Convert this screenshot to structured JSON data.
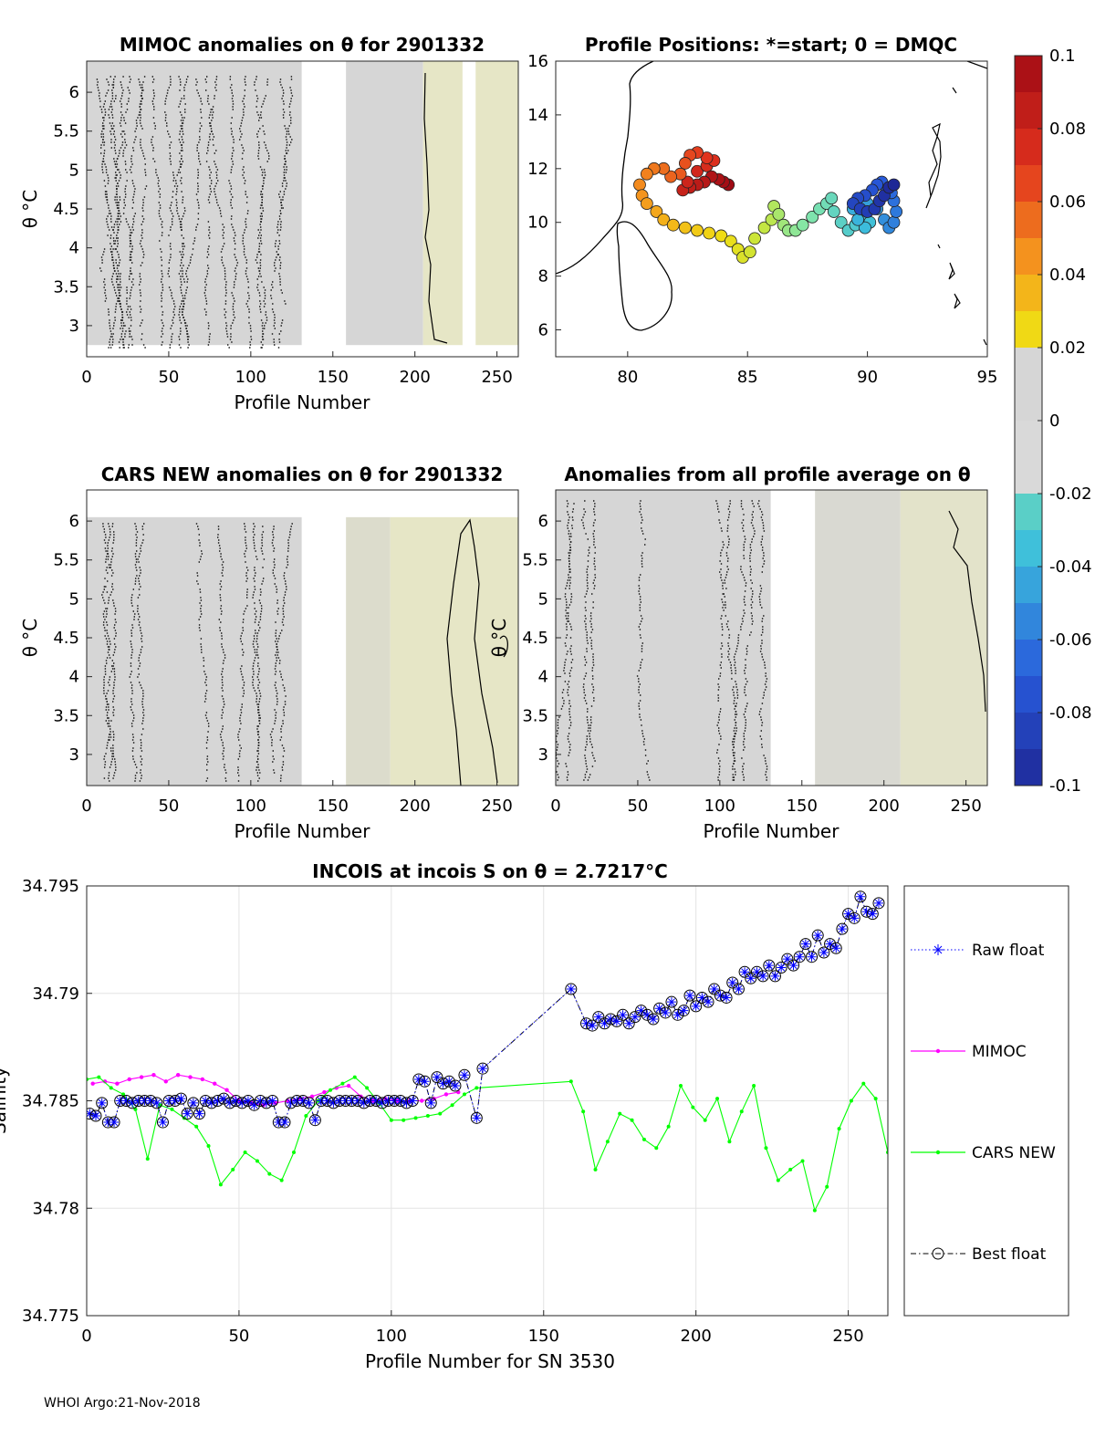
{
  "footer": "WHOI Argo:21-Nov-2018",
  "colorbar": {
    "tick_labels": [
      "0.1",
      "0.08",
      "0.06",
      "0.04",
      "0.02",
      "0",
      "-0.02",
      "-0.04",
      "-0.06",
      "-0.08",
      "-0.1"
    ],
    "range": [
      -0.1,
      0.1
    ]
  },
  "chart_data": [
    {
      "id": "mimoc",
      "type": "heatmap",
      "title": "MIMOC anomalies on θ  for 2901332",
      "xlabel": "Profile Number",
      "ylabel": "θ °C",
      "xticks": [
        "0",
        "50",
        "100",
        "150",
        "200",
        "250"
      ],
      "yticks": [
        "6",
        "5.5",
        "5",
        "4.5",
        "4",
        "3.5",
        "3"
      ],
      "xlim": [
        0,
        263
      ],
      "ylim": [
        2.6,
        6.4
      ],
      "blocks": [
        {
          "x0": 0,
          "x1": 131,
          "y0": 2.75,
          "y1": 6.4,
          "color": "#d6d6d6"
        },
        {
          "x0": 158,
          "x1": 205,
          "y0": 2.75,
          "y1": 6.4,
          "color": "#d6d6d6"
        },
        {
          "x0": 205,
          "x1": 229,
          "y0": 2.75,
          "y1": 6.4,
          "color": "#e6e6c6"
        },
        {
          "x0": 237,
          "x1": 263,
          "y0": 2.75,
          "y1": 6.4,
          "color": "#e6e6c6"
        }
      ]
    },
    {
      "id": "positions",
      "type": "scatter",
      "title": "Profile Positions: *=start; 0 = DMQC",
      "xticks": [
        "80",
        "85",
        "90",
        "95"
      ],
      "yticks": [
        "16",
        "14",
        "12",
        "10",
        "8",
        "6"
      ],
      "xlim": [
        77,
        95
      ],
      "ylim": [
        5,
        16
      ],
      "track": [
        [
          84.2,
          11.4
        ],
        [
          84.0,
          11.5
        ],
        [
          83.8,
          11.6
        ],
        [
          83.5,
          11.7
        ],
        [
          83.2,
          11.5
        ],
        [
          82.9,
          11.4
        ],
        [
          82.6,
          11.3
        ],
        [
          82.3,
          11.2
        ],
        [
          82.5,
          11.5
        ],
        [
          82.9,
          11.9
        ],
        [
          83.3,
          12.1
        ],
        [
          83.6,
          12.3
        ],
        [
          83.3,
          12.4
        ],
        [
          82.9,
          12.6
        ],
        [
          82.6,
          12.5
        ],
        [
          82.4,
          12.2
        ],
        [
          82.2,
          11.8
        ],
        [
          81.8,
          11.7
        ],
        [
          81.5,
          12.0
        ],
        [
          81.1,
          12.0
        ],
        [
          80.8,
          11.8
        ],
        [
          80.5,
          11.4
        ],
        [
          80.6,
          11.0
        ],
        [
          80.8,
          10.7
        ],
        [
          81.2,
          10.4
        ],
        [
          81.5,
          10.1
        ],
        [
          81.9,
          9.9
        ],
        [
          82.4,
          9.8
        ],
        [
          82.9,
          9.7
        ],
        [
          83.4,
          9.6
        ],
        [
          83.9,
          9.5
        ],
        [
          84.3,
          9.3
        ],
        [
          84.6,
          9.0
        ],
        [
          84.8,
          8.7
        ],
        [
          85.1,
          8.9
        ],
        [
          85.3,
          9.4
        ],
        [
          85.7,
          9.8
        ],
        [
          86.0,
          10.1
        ],
        [
          86.1,
          10.6
        ],
        [
          86.3,
          10.3
        ],
        [
          86.5,
          9.9
        ],
        [
          86.7,
          9.7
        ],
        [
          87.0,
          9.7
        ],
        [
          87.3,
          9.9
        ],
        [
          87.7,
          10.2
        ],
        [
          88.0,
          10.5
        ],
        [
          88.3,
          10.7
        ],
        [
          88.5,
          10.9
        ],
        [
          88.6,
          10.4
        ],
        [
          88.9,
          10.0
        ],
        [
          89.2,
          9.7
        ],
        [
          89.5,
          9.9
        ],
        [
          89.8,
          10.2
        ],
        [
          90.1,
          10.0
        ],
        [
          89.9,
          9.8
        ],
        [
          89.6,
          10.1
        ],
        [
          89.4,
          10.5
        ],
        [
          89.6,
          10.8
        ],
        [
          90.0,
          10.7
        ],
        [
          90.4,
          10.5
        ],
        [
          90.7,
          10.1
        ],
        [
          90.9,
          9.8
        ],
        [
          91.1,
          10.0
        ],
        [
          91.2,
          10.4
        ],
        [
          91.1,
          10.8
        ],
        [
          91.0,
          11.1
        ],
        [
          90.8,
          11.3
        ],
        [
          90.6,
          11.5
        ],
        [
          90.4,
          11.4
        ],
        [
          90.2,
          11.2
        ],
        [
          89.9,
          11.0
        ],
        [
          89.6,
          10.9
        ],
        [
          89.4,
          10.7
        ],
        [
          89.7,
          10.5
        ],
        [
          90.0,
          10.4
        ],
        [
          90.3,
          10.5
        ],
        [
          90.5,
          10.8
        ],
        [
          90.7,
          11.0
        ],
        [
          90.9,
          11.3
        ],
        [
          91.1,
          11.4
        ]
      ]
    },
    {
      "id": "cars",
      "type": "heatmap",
      "title": "CARS NEW anomalies on θ for 2901332",
      "xlabel": "Profile Number",
      "ylabel": "θ °C",
      "xticks": [
        "0",
        "50",
        "100",
        "150",
        "200",
        "250"
      ],
      "yticks": [
        "6",
        "5.5",
        "5",
        "4.5",
        "4",
        "3.5",
        "3"
      ],
      "xlim": [
        0,
        263
      ],
      "ylim": [
        2.6,
        6.4
      ],
      "blocks": [
        {
          "x0": 0,
          "x1": 131,
          "y0": 2.6,
          "y1": 6.05,
          "color": "#d6d6d6"
        },
        {
          "x0": 158,
          "x1": 185,
          "y0": 2.6,
          "y1": 6.05,
          "color": "#dcdccc"
        },
        {
          "x0": 185,
          "x1": 263,
          "y0": 2.6,
          "y1": 6.05,
          "color": "#e6e6c6"
        }
      ]
    },
    {
      "id": "allavg",
      "type": "heatmap",
      "title": "Anomalies from all profile average on θ",
      "xlabel": "Profile Number",
      "ylabel": "θ °C",
      "xticks": [
        "0",
        "50",
        "100",
        "150",
        "200",
        "250"
      ],
      "yticks": [
        "6",
        "5.5",
        "5",
        "4.5",
        "4",
        "3.5",
        "3"
      ],
      "xlim": [
        0,
        263
      ],
      "ylim": [
        2.6,
        6.4
      ],
      "blocks": [
        {
          "x0": 0,
          "x1": 131,
          "y0": 2.6,
          "y1": 6.4,
          "color": "#d6d6d6"
        },
        {
          "x0": 158,
          "x1": 210,
          "y0": 2.6,
          "y1": 6.4,
          "color": "#d9d9d2"
        },
        {
          "x0": 210,
          "x1": 263,
          "y0": 2.6,
          "y1": 6.4,
          "color": "#e3e3ca"
        }
      ]
    },
    {
      "id": "salinity",
      "type": "line",
      "title": "INCOIS at incois S on θ = 2.7217°C",
      "xlabel": "Profile Number for SN 3530",
      "ylabel": "Salinity",
      "xticks": [
        "0",
        "50",
        "100",
        "150",
        "200",
        "250"
      ],
      "yticks": [
        "34.795",
        "34.79",
        "34.785",
        "34.78",
        "34.775"
      ],
      "xlim": [
        0,
        263
      ],
      "ylim": [
        34.775,
        34.795
      ],
      "legend": [
        "Raw float",
        "MIMOC",
        "CARS NEW",
        "Best float"
      ],
      "series": [
        {
          "name": "MIMOC",
          "color": "#ff00ff",
          "x": [
            2,
            6,
            10,
            14,
            18,
            22,
            26,
            30,
            34,
            38,
            42,
            46,
            50,
            54,
            58,
            62,
            66,
            70,
            74,
            78,
            82,
            86,
            90,
            94,
            98,
            102,
            106,
            110,
            114,
            118,
            122
          ],
          "y": [
            34.7858,
            34.7859,
            34.7858,
            34.786,
            34.7861,
            34.7862,
            34.7859,
            34.7862,
            34.7861,
            34.786,
            34.7858,
            34.7855,
            34.785,
            34.7849,
            34.7848,
            34.7849,
            34.785,
            34.7851,
            34.7852,
            34.7854,
            34.7856,
            34.7857,
            34.7852,
            34.785,
            34.7851,
            34.785,
            34.785,
            34.785,
            34.7851,
            34.7853,
            34.7854
          ]
        },
        {
          "name": "CARS NEW",
          "color": "#00ff00",
          "x": [
            0,
            4,
            8,
            12,
            16,
            20,
            24,
            28,
            32,
            36,
            40,
            44,
            48,
            52,
            56,
            60,
            64,
            68,
            72,
            76,
            80,
            84,
            88,
            92,
            96,
            100,
            104,
            108,
            112,
            116,
            120,
            124,
            128,
            159,
            163,
            167,
            171,
            175,
            179,
            183,
            187,
            191,
            195,
            199,
            203,
            207,
            211,
            215,
            219,
            223,
            227,
            231,
            235,
            239,
            243,
            247,
            251,
            255,
            259,
            263
          ],
          "y": [
            34.786,
            34.7861,
            34.7856,
            34.7853,
            34.7846,
            34.7823,
            34.7848,
            34.7846,
            34.7842,
            34.7838,
            34.7829,
            34.7811,
            34.7818,
            34.7826,
            34.7822,
            34.7816,
            34.7813,
            34.7826,
            34.7843,
            34.785,
            34.7855,
            34.7858,
            34.7861,
            34.7856,
            34.7849,
            34.7841,
            34.7841,
            34.7842,
            34.7843,
            34.7844,
            34.7848,
            34.7853,
            34.7856,
            34.7859,
            34.7845,
            34.7818,
            34.7831,
            34.7844,
            34.7841,
            34.7832,
            34.7828,
            34.7838,
            34.7857,
            34.7847,
            34.7841,
            34.7851,
            34.7831,
            34.7845,
            34.7857,
            34.7828,
            34.7813,
            34.7818,
            34.7822,
            34.7799,
            34.781,
            34.7837,
            34.785,
            34.7858,
            34.7851,
            34.7826
          ]
        },
        {
          "name": "Raw float",
          "color": "#0000ff",
          "x": [
            1,
            3,
            5,
            7,
            9,
            11,
            13,
            15,
            17,
            19,
            21,
            23,
            25,
            27,
            29,
            31,
            33,
            35,
            37,
            39,
            41,
            43,
            45,
            47,
            49,
            51,
            53,
            55,
            57,
            59,
            61,
            63,
            65,
            67,
            69,
            71,
            73,
            75,
            77,
            79,
            81,
            83,
            85,
            87,
            89,
            91,
            93,
            95,
            97,
            99,
            101,
            103,
            105,
            107,
            109,
            111,
            113,
            115,
            117,
            119,
            121,
            124,
            128,
            130,
            159,
            164,
            166,
            168,
            170,
            172,
            174,
            176,
            178,
            180,
            182,
            184,
            186,
            188,
            190,
            192,
            194,
            196,
            198,
            200,
            202,
            204,
            206,
            208,
            210,
            212,
            214,
            216,
            218,
            220,
            222,
            224,
            226,
            228,
            230,
            232,
            234,
            236,
            238,
            240,
            242,
            244,
            246,
            248,
            250,
            252,
            254,
            256,
            258,
            260
          ],
          "y": [
            34.7844,
            34.7843,
            34.7849,
            34.784,
            34.784,
            34.785,
            34.785,
            34.7849,
            34.785,
            34.785,
            34.785,
            34.7849,
            34.784,
            34.785,
            34.785,
            34.7851,
            34.7844,
            34.7849,
            34.7844,
            34.785,
            34.7849,
            34.785,
            34.7851,
            34.7849,
            34.785,
            34.7849,
            34.785,
            34.7848,
            34.785,
            34.7849,
            34.785,
            34.784,
            34.784,
            34.7849,
            34.785,
            34.785,
            34.7849,
            34.7841,
            34.785,
            34.785,
            34.7849,
            34.785,
            34.785,
            34.785,
            34.785,
            34.7849,
            34.785,
            34.785,
            34.7849,
            34.785,
            34.785,
            34.785,
            34.7849,
            34.785,
            34.786,
            34.7859,
            34.7849,
            34.7861,
            34.7858,
            34.7859,
            34.7857,
            34.7862,
            34.7842,
            34.7865,
            34.7902,
            34.7886,
            34.7885,
            34.7889,
            34.7886,
            34.7888,
            34.7887,
            34.789,
            34.7886,
            34.7889,
            34.7892,
            34.789,
            34.7888,
            34.7893,
            34.7891,
            34.7896,
            34.789,
            34.7892,
            34.7899,
            34.7894,
            34.7898,
            34.7896,
            34.7902,
            34.7899,
            34.7898,
            34.7905,
            34.7902,
            34.791,
            34.7907,
            34.791,
            34.7908,
            34.7913,
            34.7908,
            34.7912,
            34.7916,
            34.7913,
            34.7917,
            34.7923,
            34.7917,
            34.7927,
            34.7919,
            34.7923,
            34.7921,
            34.793,
            34.7937,
            34.7935,
            34.7945,
            34.7938,
            34.7937,
            34.7942
          ]
        }
      ]
    }
  ]
}
